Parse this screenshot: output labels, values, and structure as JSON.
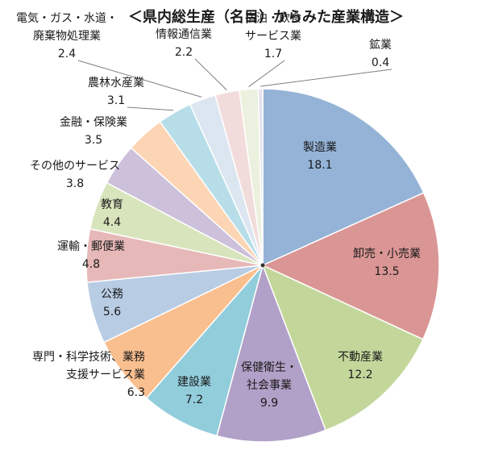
{
  "chart_data": {
    "type": "pie",
    "title": "＜県内総生産（名目）からみた産業構造＞",
    "slices": [
      {
        "label": [
          "製造業"
        ],
        "value": 18.1,
        "color": "#95b3d7"
      },
      {
        "label": [
          "卸売・小売業"
        ],
        "value": 13.5,
        "color": "#da9694"
      },
      {
        "label": [
          "不動産業"
        ],
        "value": 12.2,
        "color": "#c4d79b"
      },
      {
        "label": [
          "保健衛生・",
          "社会事業"
        ],
        "value": 9.9,
        "color": "#b1a0c7"
      },
      {
        "label": [
          "建設業"
        ],
        "value": 7.2,
        "color": "#92cddc"
      },
      {
        "label": [
          "専門・科学技術、業務",
          "支援サービス業"
        ],
        "value": 6.3,
        "color": "#fabf8f"
      },
      {
        "label": [
          "公務"
        ],
        "value": 5.6,
        "color": "#b8cce4"
      },
      {
        "label": [
          "運輸・郵便業"
        ],
        "value": 4.8,
        "color": "#e6b8b7"
      },
      {
        "label": [
          "教育"
        ],
        "value": 4.4,
        "color": "#d8e4bc"
      },
      {
        "label": [
          "その他のサービス"
        ],
        "value": 3.8,
        "color": "#ccc0da"
      },
      {
        "label": [
          "金融・保険業"
        ],
        "value": 3.5,
        "color": "#fcd5b4"
      },
      {
        "label": [
          "農林水産業"
        ],
        "value": 3.1,
        "color": "#b7dee8"
      },
      {
        "label": [
          "電気・ガス・水道・",
          "廃棄物処理業"
        ],
        "value": 2.4,
        "color": "#dce6f1"
      },
      {
        "label": [
          "情報通信業"
        ],
        "value": 2.2,
        "color": "#f2dcdb"
      },
      {
        "label": [
          "宿泊・飲食",
          "サービス業"
        ],
        "value": 1.7,
        "color": "#ebf1de"
      },
      {
        "label": [
          "鉱業"
        ],
        "value": 0.4,
        "color": "#e4dfec"
      }
    ]
  }
}
